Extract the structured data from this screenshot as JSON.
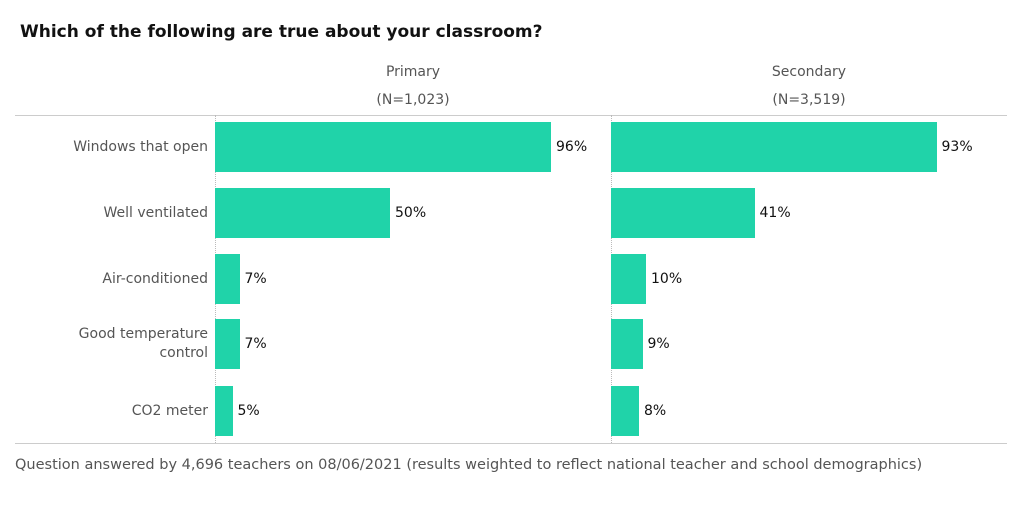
{
  "chart_data": {
    "type": "bar",
    "orientation": "horizontal",
    "title": "Which of the following are true about your classroom?",
    "categories": [
      "Windows that open",
      "Well ventilated",
      "Air-conditioned",
      "Good temperature control",
      "CO2 meter"
    ],
    "series": [
      {
        "name": "Primary",
        "subtitle": "(N=1,023)",
        "color": "#20d3a9",
        "values": [
          96,
          50,
          7,
          7,
          5
        ],
        "value_labels": [
          "96%",
          "50%",
          "7%",
          "7%",
          "5%"
        ]
      },
      {
        "name": "Secondary",
        "subtitle": "(N=3,519)",
        "color": "#20d3a9",
        "values": [
          93,
          41,
          10,
          9,
          8
        ],
        "value_labels": [
          "93%",
          "41%",
          "10%",
          "9%",
          "8%"
        ]
      }
    ],
    "footnote": "Question answered by 4,696 teachers on 08/06/2021 (results weighted to reflect national teacher and school demographics)"
  }
}
